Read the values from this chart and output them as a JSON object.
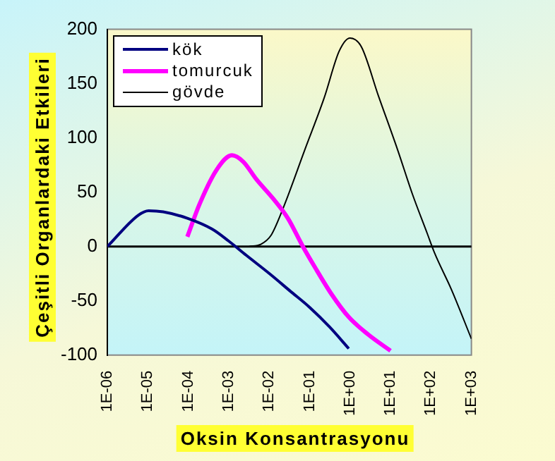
{
  "chart_data": {
    "type": "line",
    "xlabel": "Oksin Konsantrasyonu",
    "ylabel": "Çeşitli Organlardaki Etkileri",
    "log": "x",
    "legend": "top left",
    "grid": false,
    "marker": "none",
    "line_style": "solid",
    "xlim": [
      1e-06,
      1000
    ],
    "xticks": [
      {
        "value": 1e-06,
        "label": "1E-06"
      },
      {
        "value": 1e-05,
        "label": "1E-05"
      },
      {
        "value": 0.0001,
        "label": "1E-04"
      },
      {
        "value": 0.001,
        "label": "1E-03"
      },
      {
        "value": 0.01,
        "label": "1E-02"
      },
      {
        "value": 0.1,
        "label": "1E-01"
      },
      {
        "value": 1,
        "label": "1E+00"
      },
      {
        "value": 10,
        "label": "1E+01"
      },
      {
        "value": 100,
        "label": "1E+02"
      },
      {
        "value": 1000,
        "label": "1E+03"
      }
    ],
    "ref_lines": [
      {
        "axis": "y",
        "value": 0,
        "color": "#000000"
      }
    ],
    "ylim": [
      -100,
      200
    ],
    "yticks": [
      -100,
      -50,
      0,
      50,
      100,
      150,
      200
    ],
    "series": [
      {
        "name": "kök",
        "color": "#000080",
        "x": [
          1e-06,
          5.9e-06,
          1.05e-05,
          2.4e-05,
          9.5e-05,
          0.00039,
          0.001,
          0.0027,
          0.011,
          0.033,
          0.1,
          0.31,
          0.93
        ],
        "values": [
          0,
          29,
          33,
          32,
          26,
          16,
          5,
          -8,
          -26,
          -41,
          -56,
          -74,
          -94
        ]
      },
      {
        "name": "tomurcuk",
        "color": "#ff00ff",
        "x": [
          9.5e-05,
          0.00019,
          0.00051,
          0.0012,
          0.0023,
          0.0048,
          0.0126,
          0.029,
          0.066,
          0.135,
          0.35,
          0.93,
          2.8,
          10
        ],
        "values": [
          9,
          39,
          71,
          84,
          78,
          62,
          44,
          26,
          1,
          -19,
          -44,
          -65,
          -81,
          -96
        ]
      },
      {
        "name": "gövde",
        "color": "#000000",
        "x": [
          0.0032,
          0.0062,
          0.011,
          0.022,
          0.076,
          0.23,
          0.54,
          1,
          1.9,
          5,
          15,
          35,
          81,
          123,
          324,
          1000
        ],
        "values": [
          0,
          2,
          10,
          35,
          89,
          137,
          180,
          192,
          184,
          139,
          89,
          48,
          12,
          -6,
          -40,
          -85
        ]
      }
    ]
  }
}
